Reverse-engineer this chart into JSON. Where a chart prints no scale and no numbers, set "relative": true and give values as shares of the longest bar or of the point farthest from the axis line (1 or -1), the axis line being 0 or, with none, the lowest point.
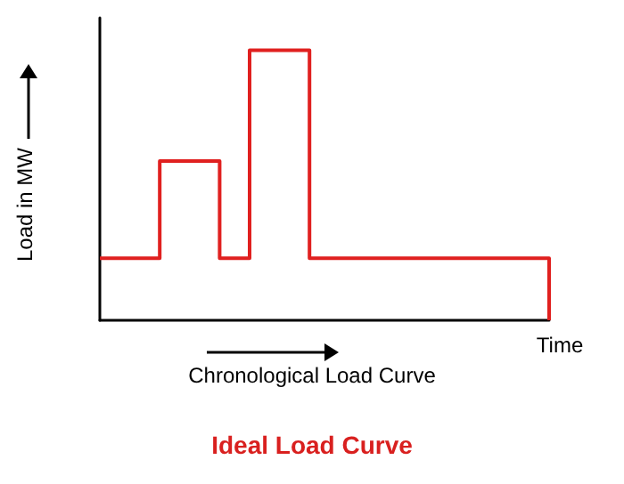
{
  "chart_data": {
    "type": "step",
    "title": "Ideal Load Curve",
    "xlabel": "Time",
    "ylabel": "Load in MW",
    "annotations": [
      "Chronological Load Curve"
    ],
    "relative": true,
    "categories": [
      null,
      null,
      null,
      null,
      null,
      null,
      null,
      null,
      null,
      null,
      null,
      null,
      null,
      null,
      null,
      null
    ],
    "series": [
      {
        "color": "#e0201f",
        "values": [
          0.23,
          0.23,
          0.59,
          0.59,
          0.23,
          1,
          1,
          0.23,
          0.23,
          0.23,
          0.23,
          0.23,
          0.23,
          0.23,
          0.23,
          0
        ]
      }
    ],
    "grid": false,
    "marker": "none",
    "line_style": "solid"
  }
}
